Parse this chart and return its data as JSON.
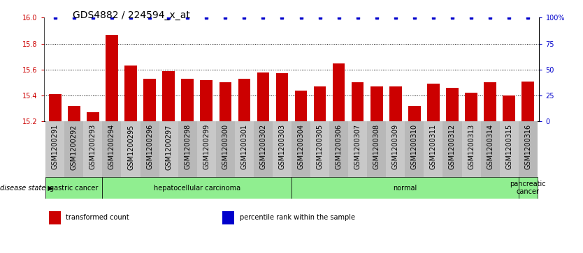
{
  "title": "GDS4882 / 224594_x_at",
  "samples": [
    "GSM1200291",
    "GSM1200292",
    "GSM1200293",
    "GSM1200294",
    "GSM1200295",
    "GSM1200296",
    "GSM1200297",
    "GSM1200298",
    "GSM1200299",
    "GSM1200300",
    "GSM1200301",
    "GSM1200302",
    "GSM1200303",
    "GSM1200304",
    "GSM1200305",
    "GSM1200306",
    "GSM1200307",
    "GSM1200308",
    "GSM1200309",
    "GSM1200310",
    "GSM1200311",
    "GSM1200312",
    "GSM1200313",
    "GSM1200314",
    "GSM1200315",
    "GSM1200316"
  ],
  "values": [
    15.41,
    15.32,
    15.27,
    15.87,
    15.63,
    15.53,
    15.59,
    15.53,
    15.52,
    15.5,
    15.53,
    15.58,
    15.57,
    15.44,
    15.47,
    15.65,
    15.5,
    15.47,
    15.47,
    15.32,
    15.49,
    15.46,
    15.42,
    15.5,
    15.4,
    15.51
  ],
  "percentile_values": [
    100,
    100,
    100,
    100,
    100,
    100,
    100,
    100,
    100,
    100,
    100,
    100,
    100,
    100,
    100,
    100,
    100,
    100,
    100,
    100,
    100,
    100,
    100,
    100,
    100,
    100
  ],
  "bar_color": "#cc0000",
  "percentile_color": "#0000cc",
  "ylim_left": [
    15.2,
    16.0
  ],
  "ylim_right": [
    0,
    100
  ],
  "yticks_left": [
    15.2,
    15.4,
    15.6,
    15.8,
    16.0
  ],
  "yticks_right": [
    0,
    25,
    50,
    75,
    100
  ],
  "ytick_labels_right": [
    "0",
    "25",
    "50",
    "75",
    "100%"
  ],
  "disease_groups": [
    {
      "label": "gastric cancer",
      "start": 0,
      "end": 3
    },
    {
      "label": "hepatocellular carcinoma",
      "start": 3,
      "end": 13
    },
    {
      "label": "normal",
      "start": 13,
      "end": 25
    },
    {
      "label": "pancreatic\ncancer",
      "start": 25,
      "end": 26
    }
  ],
  "disease_state_label": "disease state",
  "legend_items": [
    {
      "label": "transformed count",
      "color": "#cc0000"
    },
    {
      "label": "percentile rank within the sample",
      "color": "#0000cc"
    }
  ],
  "bg_color": "#ffffff",
  "tick_label_fontsize": 7,
  "title_fontsize": 10,
  "xtick_bg_even": "#c8c8c8",
  "xtick_bg_odd": "#b8b8b8",
  "disease_group_color": "#90ee90",
  "disease_group_color_dark": "#5acd5a"
}
